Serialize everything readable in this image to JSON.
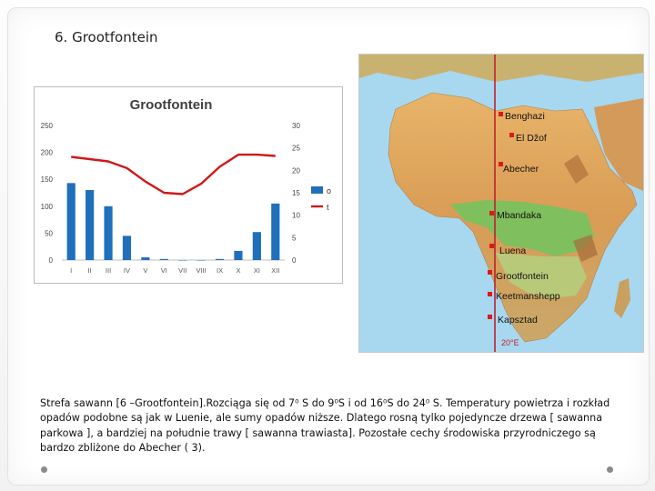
{
  "slide": {
    "heading": "6. Grootfontein",
    "description": "Strefa sawann [6 –Grootfontein].Rozciąga się od 7⁰ S do 9⁰S i od 16⁰S do 24⁰ S. Temperatury powietrza i rozkład opadów podobne są jak w Luenie, ale sumy opadów niższe. Dlatego rosną tylko pojedyncze drzewa [ sawanna parkowa ], a bardziej na południe trawy [ sawanna trawiasta]. Pozostałe cechy środowiska przyrodniczego są bardzo zbliżone do Abecher ( 3)."
  },
  "chart_data": {
    "type": "bar",
    "title": "Grootfontein",
    "categories": [
      "I",
      "II",
      "III",
      "IV",
      "V",
      "VI",
      "VII",
      "VIII",
      "IX",
      "X",
      "XI",
      "XII"
    ],
    "series": [
      {
        "name": "o",
        "kind": "bar",
        "axis": "left",
        "color": "#1f6fba",
        "values": [
          143,
          130,
          100,
          45,
          5,
          2,
          0,
          0,
          2,
          17,
          52,
          105
        ]
      },
      {
        "name": "t",
        "kind": "line",
        "axis": "right",
        "color": "#d01818",
        "values": [
          23,
          22.5,
          22,
          20.5,
          17.5,
          15,
          14.7,
          17,
          20.8,
          23.5,
          23.5,
          23.2
        ]
      }
    ],
    "left_axis": {
      "ylim": [
        0,
        250
      ],
      "ticks": [
        "0",
        "50",
        "100",
        "150",
        "200",
        "250"
      ]
    },
    "right_axis": {
      "ylim": [
        0,
        30
      ],
      "ticks": [
        "0",
        "5",
        "10",
        "15",
        "20",
        "25",
        "30"
      ]
    },
    "legend_position": "right",
    "grid": false
  },
  "map": {
    "places": [
      "Benghazi",
      "El Džof",
      "Abecher",
      "Mbandaka",
      "Luena",
      "Grootfontein",
      "Keetmanshepp",
      "Kapsztad"
    ],
    "meridian_label": "20°E",
    "meridian_color": "#c0202a",
    "marker_color": "#d81c1c"
  }
}
